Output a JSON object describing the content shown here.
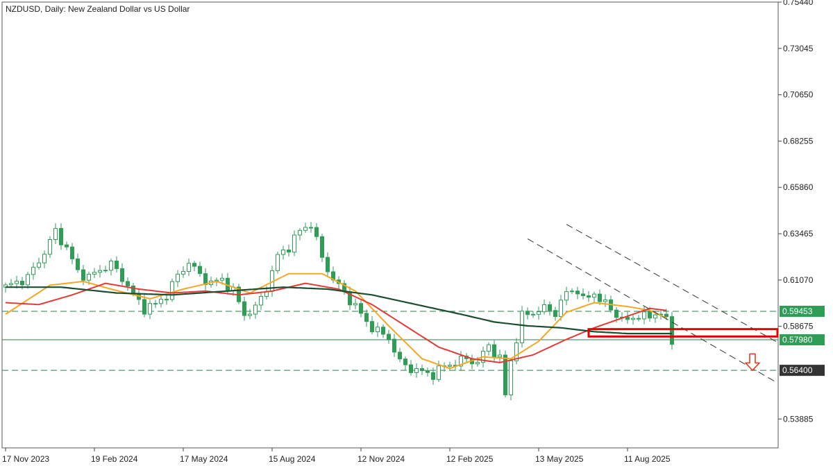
{
  "window": {
    "symbol_line": "NZDUSD, Daily:  New Zealand Dollar vs US Dollar"
  },
  "colors": {
    "candle": "#2e9e57",
    "ma_fast": "#f5a623",
    "ma_mid": "#e53935",
    "ma_slow": "#1b4d2f",
    "level_line": "#2e7d4f",
    "tag_green": "#2e9e57",
    "tag_dark": "#333333",
    "box": "#e00000",
    "arrow": "#e04020"
  },
  "chart_data": {
    "type": "candlestick",
    "title": "NZDUSD, Daily:  New Zealand Dollar vs US Dollar",
    "ylim": [
      0.5239,
      0.7544
    ],
    "y_ticks": [
      "0.75440",
      "0.73045",
      "0.70650",
      "0.68255",
      "0.65860",
      "0.63465",
      "0.61070",
      "0.58675",
      "0.53885"
    ],
    "x_ticks": [
      "17 Nov 2023",
      "19 Feb 2024",
      "17 May 2024",
      "15 Aug 2024",
      "12 Nov 2024",
      "12 Feb 2025",
      "13 May 2025",
      "11 Aug 2025"
    ],
    "close_path": [
      [
        0,
        0.607
      ],
      [
        4,
        0.612
      ],
      [
        7,
        0.625
      ],
      [
        9,
        0.636
      ],
      [
        11,
        0.627
      ],
      [
        13,
        0.615
      ],
      [
        15,
        0.612
      ],
      [
        17,
        0.616
      ],
      [
        19,
        0.619
      ],
      [
        21,
        0.612
      ],
      [
        23,
        0.603
      ],
      [
        25,
        0.596
      ],
      [
        27,
        0.598
      ],
      [
        29,
        0.603
      ],
      [
        31,
        0.613
      ],
      [
        33,
        0.62
      ],
      [
        35,
        0.613
      ],
      [
        37,
        0.609
      ],
      [
        39,
        0.611
      ],
      [
        41,
        0.605
      ],
      [
        43,
        0.593
      ],
      [
        45,
        0.596
      ],
      [
        47,
        0.607
      ],
      [
        49,
        0.623
      ],
      [
        51,
        0.628
      ],
      [
        53,
        0.636
      ],
      [
        55,
        0.64
      ],
      [
        57,
        0.622
      ],
      [
        59,
        0.611
      ],
      [
        61,
        0.604
      ],
      [
        63,
        0.597
      ],
      [
        65,
        0.589
      ],
      [
        67,
        0.584
      ],
      [
        69,
        0.581
      ],
      [
        71,
        0.568
      ],
      [
        73,
        0.565
      ],
      [
        75,
        0.563
      ],
      [
        77,
        0.562
      ],
      [
        79,
        0.566
      ],
      [
        81,
        0.568
      ],
      [
        83,
        0.57
      ],
      [
        85,
        0.568
      ],
      [
        87,
        0.577
      ],
      [
        89,
        0.57
      ],
      [
        90,
        0.551
      ],
      [
        91,
        0.569
      ],
      [
        93,
        0.592
      ],
      [
        95,
        0.594
      ],
      [
        97,
        0.596
      ],
      [
        99,
        0.594
      ],
      [
        101,
        0.604
      ],
      [
        103,
        0.606
      ],
      [
        104,
        0.6
      ],
      [
        106,
        0.604
      ],
      [
        108,
        0.598
      ],
      [
        110,
        0.593
      ],
      [
        112,
        0.589
      ],
      [
        114,
        0.593
      ],
      [
        116,
        0.591
      ],
      [
        118,
        0.595
      ],
      [
        119,
        0.589
      ],
      [
        120,
        0.578
      ]
    ],
    "series": [
      {
        "values": [
          [
            0,
            0.593
          ],
          [
            8,
            0.608
          ],
          [
            14,
            0.61
          ],
          [
            19,
            0.606
          ],
          [
            26,
            0.601
          ],
          [
            32,
            0.606
          ],
          [
            38,
            0.61
          ],
          [
            44,
            0.604
          ],
          [
            51,
            0.614
          ],
          [
            57,
            0.614
          ],
          [
            63,
            0.605
          ],
          [
            69,
            0.587
          ],
          [
            75,
            0.57
          ],
          [
            80,
            0.565
          ],
          [
            86,
            0.571
          ],
          [
            91,
            0.57
          ],
          [
            96,
            0.579
          ],
          [
            101,
            0.594
          ],
          [
            106,
            0.599
          ],
          [
            112,
            0.597
          ],
          [
            116,
            0.595
          ],
          [
            119,
            0.591
          ]
        ]
      },
      {
        "values": [
          [
            0,
            0.599
          ],
          [
            6,
            0.598
          ],
          [
            12,
            0.603
          ],
          [
            18,
            0.609
          ],
          [
            24,
            0.606
          ],
          [
            30,
            0.604
          ],
          [
            36,
            0.605
          ],
          [
            42,
            0.603
          ],
          [
            48,
            0.605
          ],
          [
            54,
            0.609
          ],
          [
            60,
            0.606
          ],
          [
            66,
            0.598
          ],
          [
            72,
            0.587
          ],
          [
            78,
            0.576
          ],
          [
            84,
            0.57
          ],
          [
            89,
            0.568
          ],
          [
            95,
            0.572
          ],
          [
            101,
            0.58
          ],
          [
            106,
            0.586
          ],
          [
            111,
            0.591
          ],
          [
            116,
            0.596
          ],
          [
            119,
            0.595
          ]
        ]
      },
      {
        "values": [
          [
            0,
            0.607
          ],
          [
            10,
            0.607
          ],
          [
            20,
            0.604
          ],
          [
            30,
            0.603
          ],
          [
            40,
            0.605
          ],
          [
            50,
            0.607
          ],
          [
            58,
            0.606
          ],
          [
            66,
            0.603
          ],
          [
            74,
            0.598
          ],
          [
            82,
            0.593
          ],
          [
            88,
            0.589
          ],
          [
            94,
            0.587
          ],
          [
            100,
            0.586
          ],
          [
            106,
            0.584
          ],
          [
            112,
            0.583
          ],
          [
            116,
            0.583
          ],
          [
            120,
            0.583
          ]
        ]
      }
    ],
    "levels": [
      {
        "value": 0.59453,
        "label": "0.59453",
        "style": "dashed",
        "tag": "green"
      },
      {
        "value": 0.5798,
        "label": "0.57980",
        "style": "solid",
        "tag": "green"
      },
      {
        "value": 0.564,
        "label": "0.56400",
        "style": "dashed",
        "tag": "dark"
      }
    ],
    "channel": [
      {
        "from": [
          94,
          0.632
        ],
        "to": [
          139,
          0.5575
        ]
      },
      {
        "from": [
          101,
          0.6395
        ],
        "to": [
          139,
          0.5785
        ]
      }
    ],
    "zone": {
      "x_from": 105,
      "x_to": 139,
      "y_top": 0.5853,
      "y_bottom": 0.5815
    },
    "arrow": {
      "x": 134.5,
      "y_top": 0.5725,
      "y_bottom": 0.564,
      "direction": "down"
    }
  }
}
